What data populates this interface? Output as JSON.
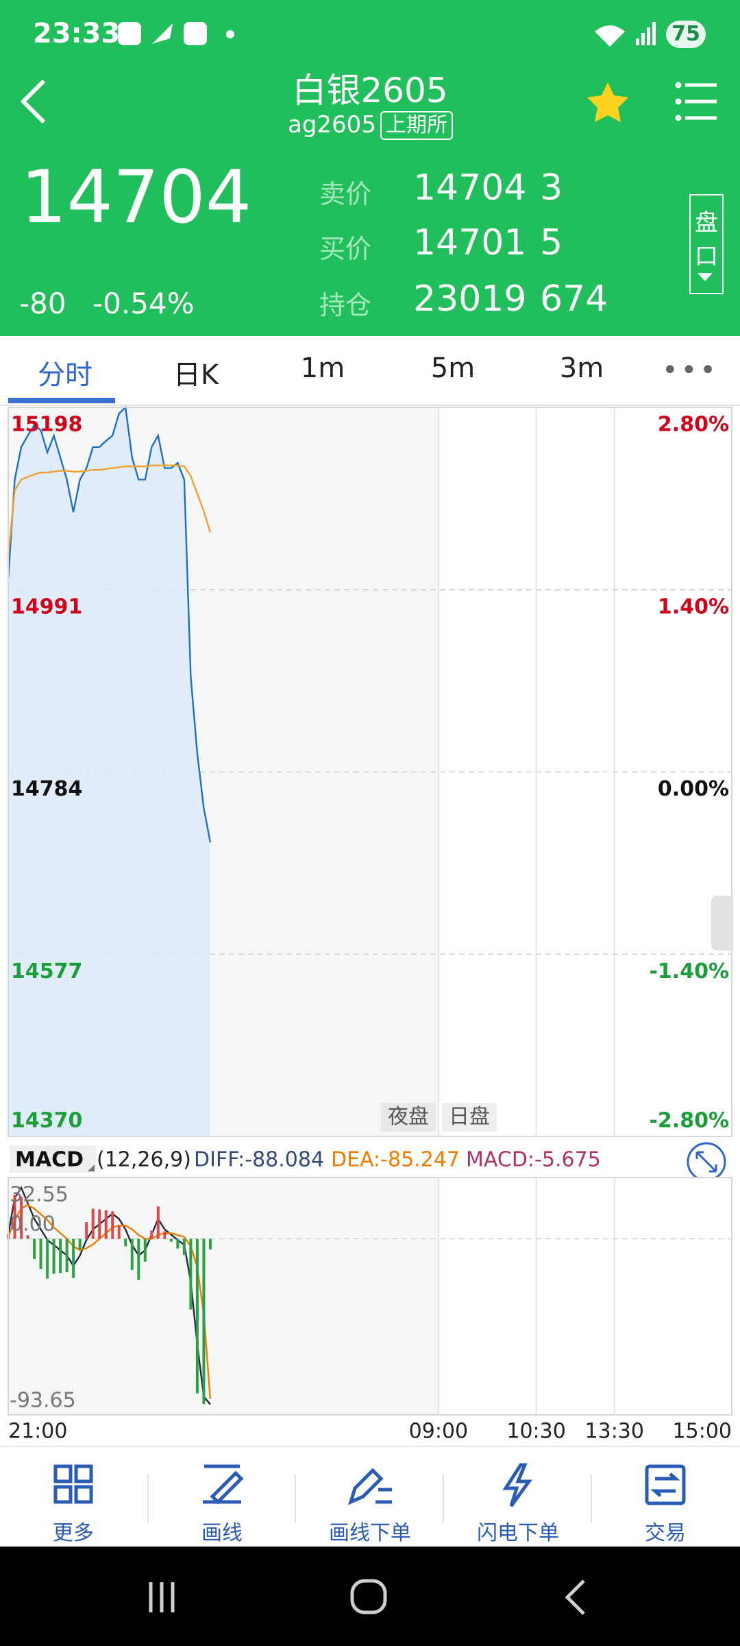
{
  "status_bar": {
    "time": "23:33",
    "battery": "75"
  },
  "header": {
    "title": "白银2605",
    "code": "ag2605",
    "exchange": "上期所"
  },
  "quote": {
    "price": "14704",
    "change": "-80",
    "change_pct": "-0.54%",
    "rows": [
      {
        "label": "卖价",
        "price": "14704",
        "volume": "3"
      },
      {
        "label": "买价",
        "price": "14701",
        "volume": "5"
      },
      {
        "label": "持仓",
        "price": "23019",
        "volume": "674"
      }
    ],
    "depth_button": [
      "盘",
      "口"
    ]
  },
  "tabs": [
    "分时",
    "日K",
    "1m",
    "5m",
    "3m"
  ],
  "sessions": [
    "夜盘",
    "日盘"
  ],
  "chart_data": [
    {
      "type": "line",
      "ylim": [
        14370,
        15198
      ],
      "yticks": [
        15198,
        14991,
        14784,
        14577,
        14370
      ],
      "y2lim": [
        -2.8,
        2.8
      ],
      "y2ticks": [
        {
          "value": 2.8,
          "label": "2.80%"
        },
        {
          "value": 1.4,
          "label": "1.40%"
        },
        {
          "value": 0,
          "label": "0.00%"
        },
        {
          "value": -1.4,
          "label": "-1.40%"
        },
        {
          "value": -2.8,
          "label": "-2.80%"
        }
      ],
      "xlim": [
        0,
        555
      ],
      "grid": true,
      "x": [
        0,
        5,
        10,
        15,
        20,
        25,
        30,
        35,
        40,
        45,
        50,
        55,
        60,
        65,
        70,
        75,
        80,
        85,
        90,
        95,
        100,
        105,
        110,
        115,
        120,
        125,
        130,
        135,
        140,
        145,
        150,
        155
      ],
      "series": [
        {
          "color": "#1f6fc5",
          "values": [
            15004,
            15116,
            15153,
            15166,
            15178,
            15172,
            15147,
            15166,
            15141,
            15116,
            15079,
            15116,
            15129,
            15153,
            15153,
            15160,
            15166,
            15191,
            15198,
            15141,
            15116,
            15116,
            15153,
            15166,
            15129,
            15129,
            15135,
            15116,
            14892,
            14805,
            14743,
            14704
          ]
        },
        {
          "color": "#f0a030",
          "values": [
            15029,
            15104,
            15116,
            15119,
            15122,
            15124,
            15124,
            15125,
            15126,
            15126,
            15125,
            15125,
            15126,
            15127,
            15127,
            15128,
            15129,
            15130,
            15131,
            15131,
            15131,
            15131,
            15132,
            15132,
            15132,
            15132,
            15132,
            15131,
            15120,
            15100,
            15080,
            15056
          ]
        }
      ]
    },
    {
      "type": "macd",
      "title": "MACD",
      "subtitle": "(12,26,9)",
      "legend": [
        {
          "label": "DIFF:-88.084",
          "color": "#34487a"
        },
        {
          "label": "DEA:-85.247",
          "color": "#f07c00"
        },
        {
          "label": "MACD:-5.675",
          "color": "#b0306a"
        }
      ],
      "ylim": [
        -93.65,
        32.55
      ],
      "yticks": [
        32.55,
        {
          "value": 0,
          "label": "0.00"
        },
        -93.65
      ],
      "xlim": [
        0,
        555
      ],
      "xticks": [
        {
          "value": 0,
          "label": "21:00"
        },
        {
          "value": 330,
          "label": "09:00"
        },
        {
          "value": 405,
          "label": "10:30"
        },
        {
          "value": 465,
          "label": "13:30"
        },
        {
          "value": 555,
          "label": "15:00"
        }
      ],
      "x": [
        0,
        5,
        10,
        15,
        20,
        25,
        30,
        35,
        40,
        45,
        50,
        55,
        60,
        65,
        70,
        75,
        80,
        85,
        90,
        95,
        100,
        105,
        110,
        115,
        120,
        125,
        130,
        135,
        140,
        145,
        150,
        155
      ],
      "series": [
        {
          "type": "line",
          "color": "#1e2a44",
          "values": [
            2.2,
            21.7,
            27.2,
            18.9,
            10.6,
            5.0,
            -0.6,
            -3.3,
            -6.1,
            -8.9,
            -14.4,
            -8.9,
            -0.6,
            5.0,
            7.8,
            10.6,
            13.3,
            10.6,
            5.0,
            -3.3,
            -8.9,
            -6.1,
            2.2,
            10.6,
            5.0,
            2.2,
            -0.6,
            -3.3,
            -22.8,
            -56.1,
            -83.9,
            -88.084
          ]
        },
        {
          "type": "line",
          "color": "#f07c00",
          "values": [
            1,
            10,
            16,
            18,
            16,
            13,
            10,
            6,
            3,
            0,
            -4,
            -6,
            -5,
            -3,
            0,
            3,
            6,
            7,
            7,
            5,
            2,
            0,
            0,
            2,
            3,
            3,
            2,
            1,
            -4,
            -15,
            -40,
            -85.247
          ]
        },
        {
          "type": "bar",
          "up_color": "#e04848",
          "down_color": "#2ea043",
          "values": [
            2.4,
            23.4,
            22.4,
            1.8,
            -10.8,
            -16,
            -21.2,
            -18.6,
            -18.2,
            -17.8,
            -20.8,
            -5.8,
            8.8,
            16,
            15.6,
            15.2,
            14.6,
            7.2,
            -4,
            -16.6,
            -21.8,
            -12.2,
            4.4,
            17.2,
            4,
            -1.6,
            -5.2,
            -8.6,
            -37.6,
            -82.2,
            -87.8,
            -5.675
          ]
        }
      ]
    }
  ],
  "nav": [
    "更多",
    "画线",
    "画线下单",
    "闪电下单",
    "交易"
  ]
}
